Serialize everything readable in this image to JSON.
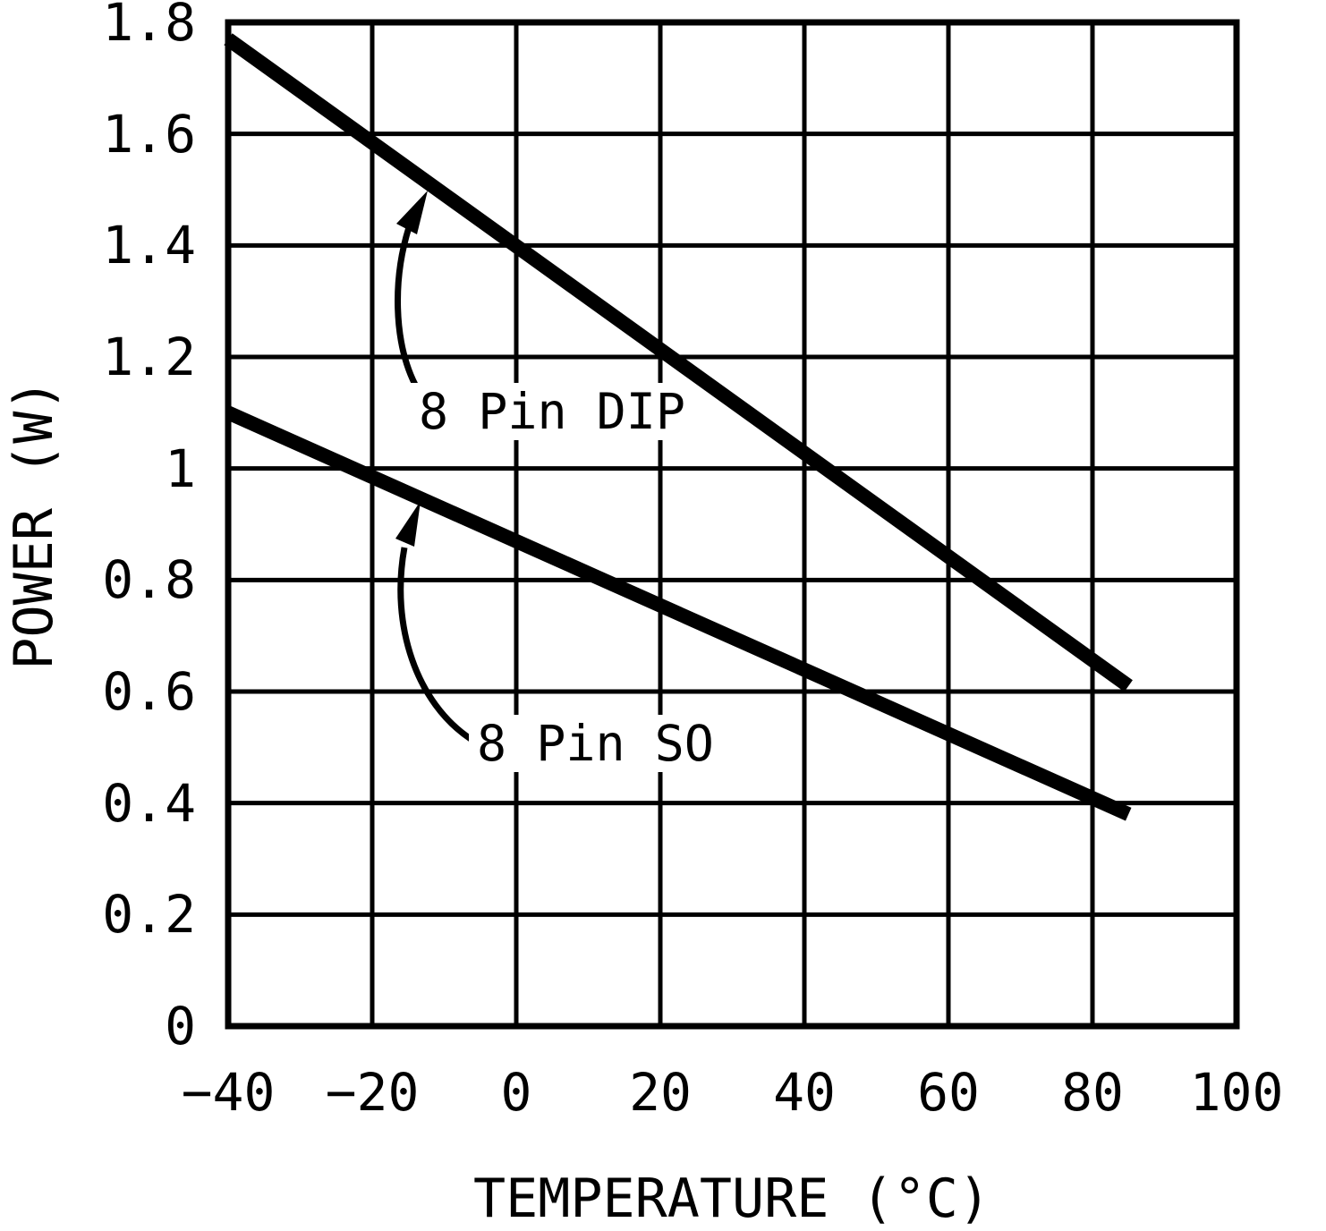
{
  "figure": {
    "background": "#ffffff"
  },
  "chart_data": {
    "type": "line",
    "title": "",
    "xlabel": "TEMPERATURE (°C)",
    "ylabel": "POWER (W)",
    "xlim": [
      -40,
      100
    ],
    "ylim": [
      0,
      1.8
    ],
    "grid": true,
    "legend_position": "inline-annotations",
    "x_axis": {
      "ticks": [
        -40,
        -20,
        0,
        20,
        40,
        60,
        80,
        100
      ],
      "tick_labels": [
        "−40",
        "−20",
        "0",
        "20",
        "40",
        "60",
        "80",
        "100"
      ]
    },
    "y_axis": {
      "ticks": [
        0,
        0.2,
        0.4,
        0.6,
        0.8,
        1,
        1.2,
        1.4,
        1.6,
        1.8
      ],
      "tick_labels": [
        "0",
        "0.2",
        "0.4",
        "0.6",
        "0.8",
        "1",
        "1.2",
        "1.4",
        "1.6",
        "1.8"
      ]
    },
    "series": [
      {
        "name": "8 Pin DIP",
        "points": [
          [
            -40,
            1.77
          ],
          [
            85,
            0.61
          ]
        ]
      },
      {
        "name": "8 Pin SO",
        "points": [
          [
            -40,
            1.1
          ],
          [
            85,
            0.38
          ]
        ]
      }
    ],
    "annotations": [
      {
        "text": "8 Pin DIP",
        "series": "8 Pin DIP"
      },
      {
        "text": "8 Pin SO",
        "series": "8 Pin SO"
      }
    ],
    "colors": {
      "line": "#000000",
      "grid": "#000000",
      "axis": "#000000",
      "text": "#000000",
      "background": "#ffffff"
    }
  }
}
